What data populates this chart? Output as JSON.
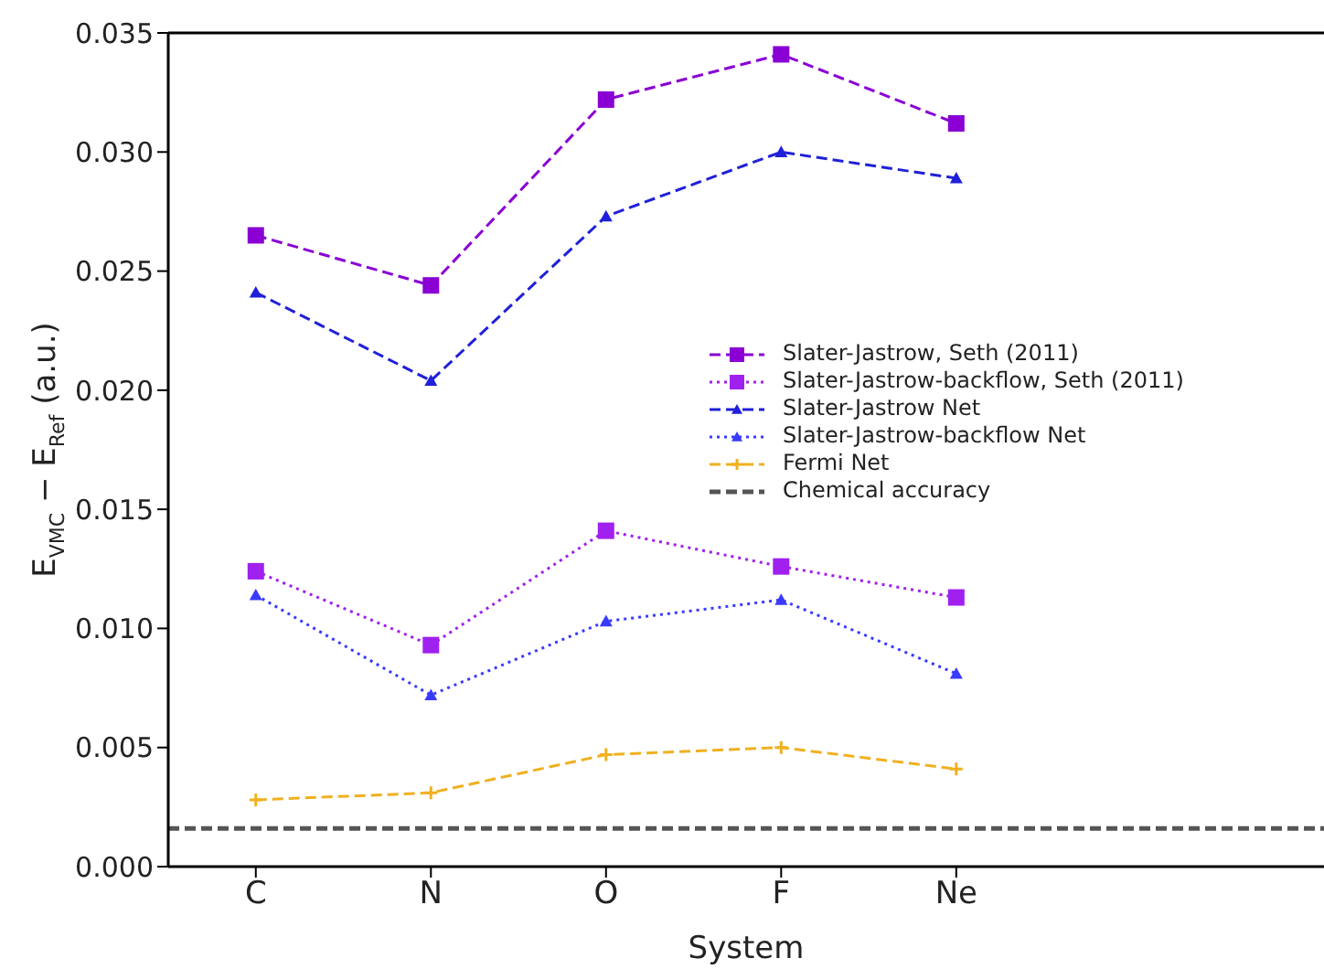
{
  "chart_data": {
    "type": "line",
    "xlabel": "System",
    "ylabel": "E$_{VMC}$ − E$_{Ref}$ (a.u.)",
    "categories": [
      "C",
      "N",
      "O",
      "F",
      "Ne"
    ],
    "ylim": [
      0,
      0.035
    ],
    "yticks": [
      {
        "value": 0,
        "label": "0.000"
      },
      {
        "value": 0.005,
        "label": "0.005"
      },
      {
        "value": 0.01,
        "label": "0.010"
      },
      {
        "value": 0.015,
        "label": "0.015"
      },
      {
        "value": 0.02,
        "label": "0.020"
      },
      {
        "value": 0.025,
        "label": "0.025"
      },
      {
        "value": 0.03,
        "label": "0.030"
      },
      {
        "value": 0.035,
        "label": "0.035"
      }
    ],
    "grid": false,
    "legend": "right",
    "series": [
      {
        "name": "Slater-Jastrow, Seth (2011)",
        "color": "#8a00d4",
        "line_style": "dashed",
        "marker": "square",
        "values": [
          0.0265,
          0.0244,
          0.0322,
          0.0341,
          0.0312
        ]
      },
      {
        "name": "Slater-Jastrow-backflow, Seth (2011)",
        "color": "#a020f0",
        "line_style": "dotted",
        "marker": "square",
        "values": [
          0.0124,
          0.0093,
          0.0141,
          0.0126,
          0.0113
        ]
      },
      {
        "name": "Slater-Jastrow Net",
        "color": "#2020d8",
        "line_style": "dashed",
        "marker": "triangle",
        "values": [
          0.0241,
          0.0204,
          0.0273,
          0.03,
          0.0289
        ]
      },
      {
        "name": "Slater-Jastrow-backflow Net",
        "color": "#3a3aff",
        "line_style": "dotted",
        "marker": "triangle",
        "values": [
          0.0114,
          0.0072,
          0.0103,
          0.0112,
          0.0081
        ]
      },
      {
        "name": "Fermi Net",
        "color": "#f0b020",
        "line_style": "dashed",
        "marker": "cross",
        "values": [
          0.0028,
          0.0031,
          0.0047,
          0.005,
          0.0041
        ]
      }
    ],
    "ref_lines": [
      {
        "axis": "y",
        "value": 0.0016,
        "label": "Chemical accuracy",
        "color": "#555555",
        "line_style": "dashed"
      }
    ]
  }
}
